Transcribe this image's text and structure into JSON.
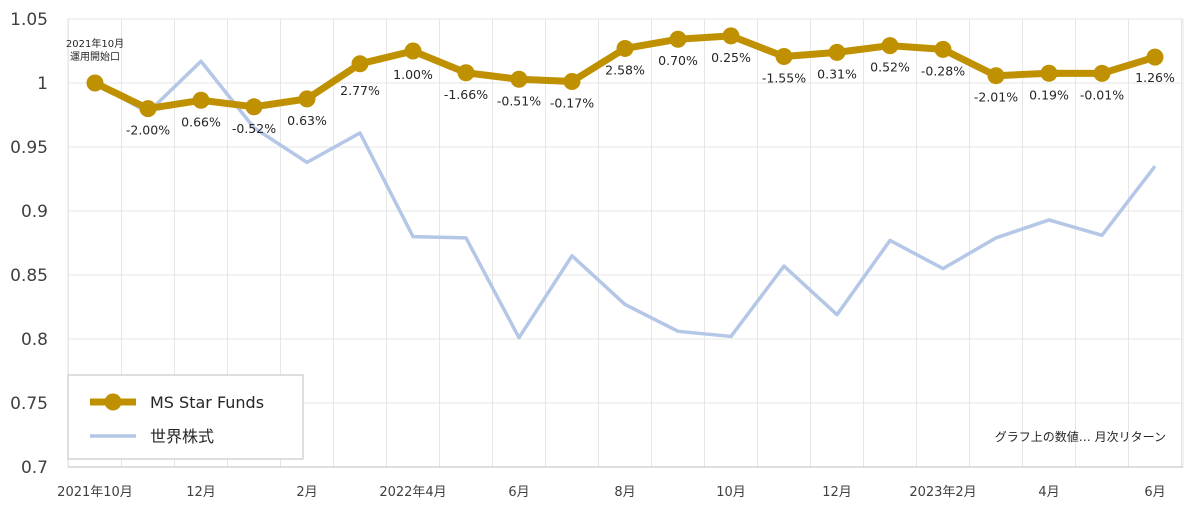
{
  "chart_data": {
    "type": "line",
    "ylim": [
      0.7,
      1.05
    ],
    "yticks": [
      0.7,
      0.75,
      0.8,
      0.85,
      0.9,
      0.95,
      1,
      1.05
    ],
    "ytick_labels": [
      "0.7",
      "0.75",
      "0.8",
      "0.85",
      "0.9",
      "0.95",
      "1",
      "1.05"
    ],
    "x": [
      "2021-10",
      "2021-11",
      "2021-12",
      "2022-01",
      "2022-02",
      "2022-03",
      "2022-04",
      "2022-05",
      "2022-06",
      "2022-07",
      "2022-08",
      "2022-09",
      "2022-10",
      "2022-11",
      "2022-12",
      "2023-01",
      "2023-02",
      "2023-03",
      "2023-04",
      "2023-05",
      "2023-06"
    ],
    "xtick_labels": [
      "2021年10月",
      "",
      "12月",
      "",
      "2月",
      "",
      "2022年4月",
      "",
      "6月",
      "",
      "8月",
      "",
      "10月",
      "",
      "12月",
      "",
      "2023年2月",
      "",
      "4月",
      "",
      "6月"
    ],
    "series": [
      {
        "name": "MS Star Funds",
        "color": "#BF9000",
        "values": [
          1.0,
          0.98,
          0.9865,
          0.9814,
          0.9876,
          1.015,
          1.025,
          1.008,
          1.0029,
          1.0012,
          1.027,
          1.0342,
          1.0368,
          1.0207,
          1.0239,
          1.0292,
          1.0263,
          1.0057,
          1.0076,
          1.0075,
          1.0202
        ],
        "labels": [
          "",
          "-2.00%",
          "0.66%",
          "-0.52%",
          "0.63%",
          "2.77%",
          "1.00%",
          "-1.66%",
          "-0.51%",
          "-0.17%",
          "2.58%",
          "0.70%",
          "0.25%",
          "-1.55%",
          "0.31%",
          "0.52%",
          "-0.28%",
          "-2.01%",
          "0.19%",
          "-0.01%",
          "1.26%"
        ]
      },
      {
        "name": "世界株式",
        "color": "#B4C7E7",
        "values": [
          1.0,
          0.977,
          1.017,
          0.965,
          0.938,
          0.961,
          0.88,
          0.879,
          0.801,
          0.865,
          0.827,
          0.806,
          0.802,
          0.857,
          0.819,
          0.877,
          0.855,
          0.879,
          0.893,
          0.881,
          0.935
        ]
      }
    ],
    "annotation_start": [
      "2021年10月",
      "運用開始口"
    ],
    "note": "グラフ上の数値… 月次リターン",
    "legend": {
      "position": "bottom-left",
      "entries": [
        "MS Star Funds",
        "世界株式"
      ]
    },
    "grid": {
      "vertical": true,
      "horizontal": true
    }
  }
}
